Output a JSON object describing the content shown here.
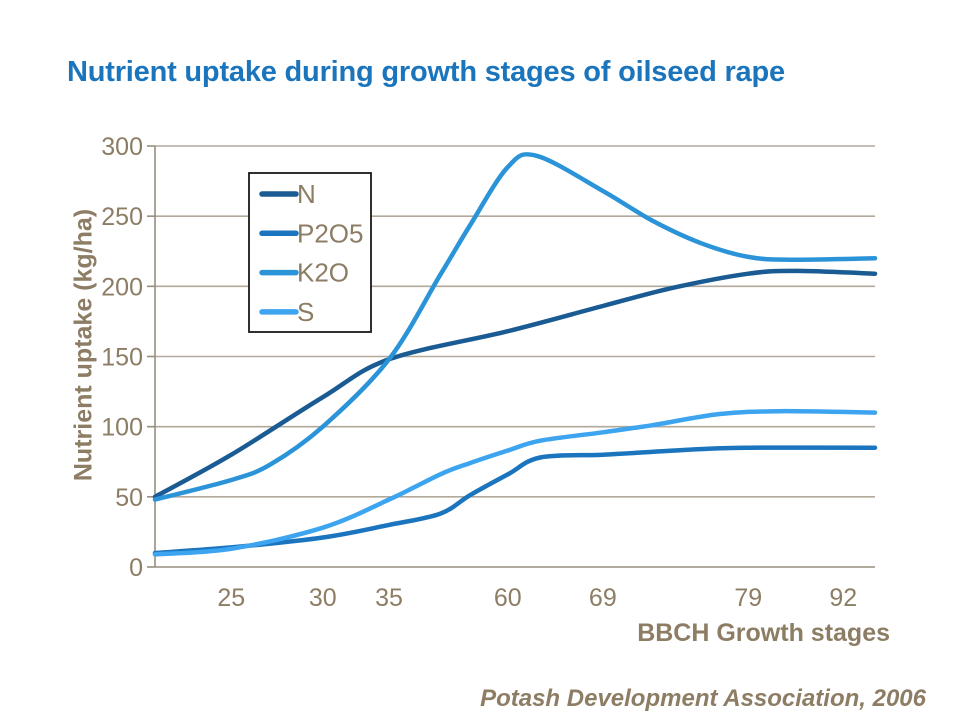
{
  "title": {
    "text": "Nutrient uptake during growth stages of oilseed rape",
    "color": "#1B75BC"
  },
  "source": {
    "text": "Potash Development Association, 2006"
  },
  "colors": {
    "title_blue": "#1B75BC",
    "text_brown": "#8C7D64",
    "gridline": "#B2A99B",
    "axis": "#968E7E",
    "legend_border": "#1A1A1A",
    "background": "#FFFFFF"
  },
  "chart_data": {
    "type": "line",
    "title": "Nutrient uptake during growth stages of oilseed rape",
    "xlabel": "BBCH Growth stages",
    "ylabel": "Nutrient uptake (kg/ha)",
    "ylim": [
      0,
      300
    ],
    "y_ticks": [
      0,
      50,
      100,
      150,
      200,
      250,
      300
    ],
    "x_ticks": [
      {
        "label": "25",
        "f": 0.106
      },
      {
        "label": "30",
        "f": 0.233
      },
      {
        "label": "35",
        "f": 0.325
      },
      {
        "label": "60",
        "f": 0.49
      },
      {
        "label": "69",
        "f": 0.622
      },
      {
        "label": "79",
        "f": 0.824
      },
      {
        "label": "92",
        "f": 0.956
      }
    ],
    "grid": true,
    "legend_position": "upper-left-inside",
    "series": [
      {
        "name": "N",
        "color": "#1A5B93",
        "points": [
          [
            0,
            50
          ],
          [
            0.106,
            80
          ],
          [
            0.233,
            121
          ],
          [
            0.325,
            148
          ],
          [
            0.49,
            168
          ],
          [
            0.622,
            186
          ],
          [
            0.72,
            199
          ],
          [
            0.824,
            209
          ],
          [
            0.89,
            211
          ],
          [
            1,
            209
          ]
        ]
      },
      {
        "name": "P2O5",
        "color": "#1B74BE",
        "points": [
          [
            0,
            10
          ],
          [
            0.106,
            14
          ],
          [
            0.233,
            21
          ],
          [
            0.325,
            30
          ],
          [
            0.396,
            38
          ],
          [
            0.437,
            51
          ],
          [
            0.49,
            66
          ],
          [
            0.535,
            78
          ],
          [
            0.622,
            80
          ],
          [
            0.69,
            82
          ],
          [
            0.757,
            84
          ],
          [
            0.824,
            85
          ],
          [
            1,
            85
          ]
        ]
      },
      {
        "name": "K2O",
        "color": "#2B94D8",
        "points": [
          [
            0,
            48
          ],
          [
            0.106,
            62
          ],
          [
            0.16,
            73
          ],
          [
            0.233,
            100
          ],
          [
            0.325,
            148
          ],
          [
            0.396,
            208
          ],
          [
            0.437,
            243
          ],
          [
            0.49,
            285
          ],
          [
            0.53,
            293
          ],
          [
            0.622,
            268
          ],
          [
            0.69,
            247
          ],
          [
            0.757,
            231
          ],
          [
            0.824,
            221
          ],
          [
            0.885,
            219
          ],
          [
            1,
            220
          ]
        ]
      },
      {
        "name": "S",
        "color": "#3DA5F0",
        "points": [
          [
            0,
            9
          ],
          [
            0.106,
            13
          ],
          [
            0.233,
            28
          ],
          [
            0.325,
            48
          ],
          [
            0.396,
            66
          ],
          [
            0.437,
            74
          ],
          [
            0.49,
            83
          ],
          [
            0.535,
            90
          ],
          [
            0.622,
            96
          ],
          [
            0.69,
            101
          ],
          [
            0.784,
            109
          ],
          [
            0.868,
            111
          ],
          [
            1,
            110
          ]
        ]
      }
    ],
    "values_at_ticks": {
      "bbch": [
        25,
        30,
        35,
        60,
        69,
        79,
        92
      ],
      "N": [
        80,
        121,
        148,
        168,
        186,
        209,
        210
      ],
      "P2O5": [
        14,
        21,
        30,
        66,
        80,
        85,
        85
      ],
      "K2O": [
        62,
        100,
        148,
        285,
        268,
        221,
        220
      ],
      "S": [
        13,
        28,
        48,
        83,
        96,
        110,
        110
      ]
    },
    "start_values": {
      "N": 50,
      "P2O5": 10,
      "K2O": 48,
      "S": 9
    },
    "k2o_peak_value": 293
  }
}
